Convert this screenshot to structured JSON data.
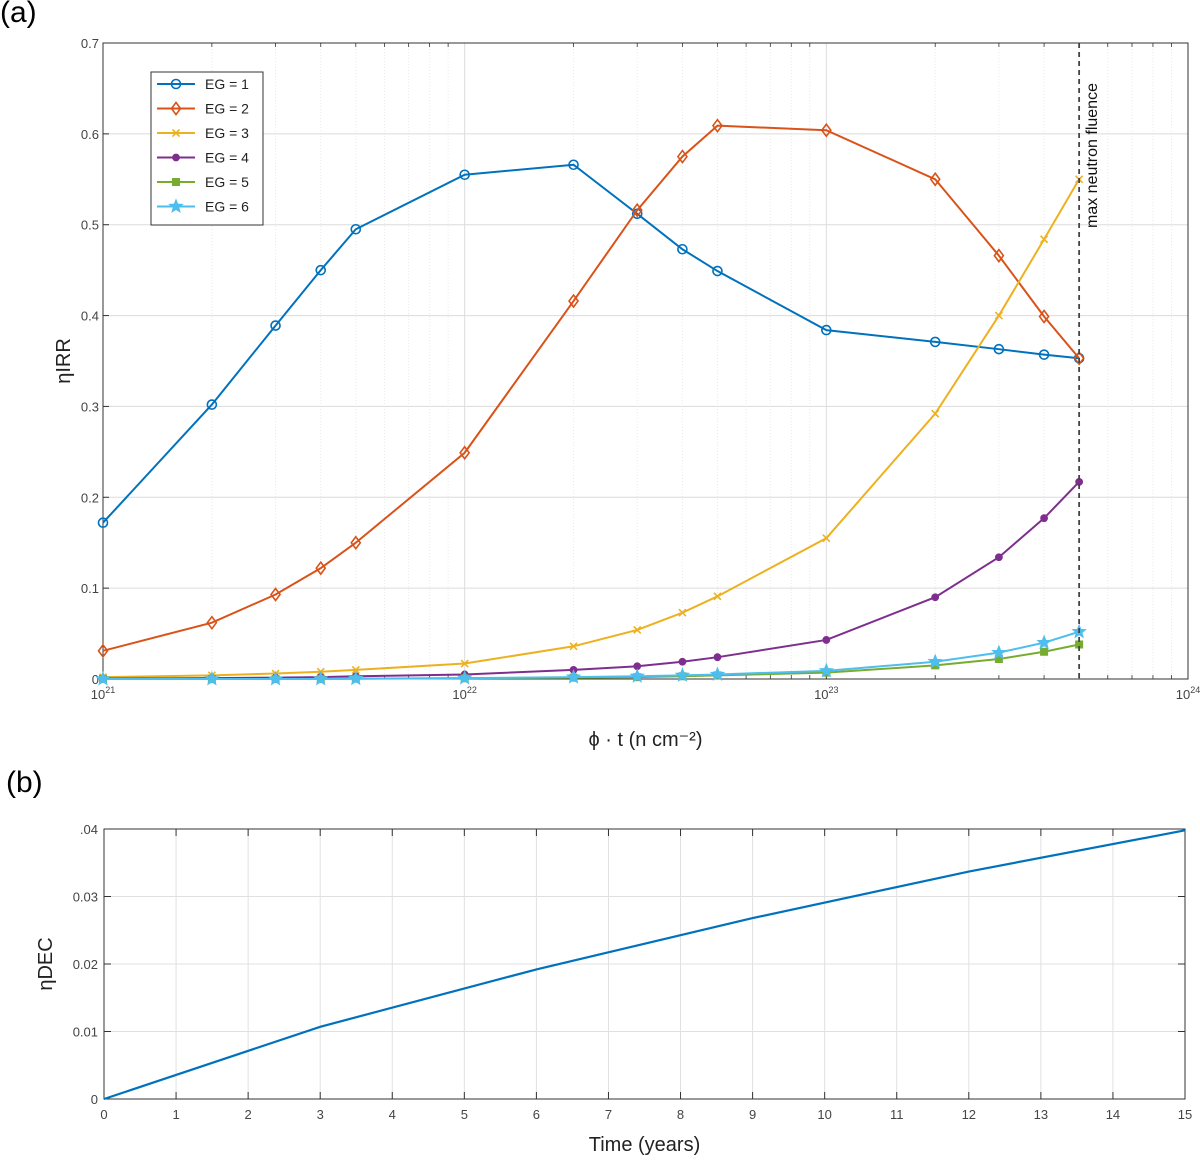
{
  "panels": {
    "a_label": "(a)",
    "b_label": "(b)"
  },
  "chart_data": [
    {
      "type": "line",
      "xscale": "log",
      "xlim": [
        1e+21,
        1e+24
      ],
      "ylim": [
        0,
        0.7
      ],
      "grid": true,
      "legend_position": "top-left",
      "xlabel": "ϕ · t (n cm⁻²)",
      "ylabel": "ηIRR",
      "x_ticks": [
        "10^21",
        "10^22",
        "10^23",
        "10^24"
      ],
      "y_ticks": [
        "0",
        "0.1",
        "0.2",
        "0.3",
        "0.4",
        "0.5",
        "0.6",
        "0.7"
      ],
      "x": [
        1e+21,
        2e+21,
        3e+21,
        4e+21,
        5e+21,
        1e+22,
        2e+22,
        3e+22,
        4e+22,
        5e+22,
        1e+23,
        2e+23,
        3e+23,
        4e+23,
        5e+23
      ],
      "annotation": {
        "text": "max neutron fluence",
        "x": 5e+23
      },
      "series": [
        {
          "name": "EG = 1",
          "color": "#0072BD",
          "marker": "circle",
          "values": [
            0.172,
            0.302,
            0.389,
            0.45,
            0.495,
            0.555,
            0.566,
            0.512,
            0.473,
            0.449,
            0.384,
            0.371,
            0.363,
            0.357,
            0.353
          ]
        },
        {
          "name": "EG = 2",
          "color": "#D95319",
          "marker": "diamond",
          "values": [
            0.031,
            0.062,
            0.093,
            0.122,
            0.15,
            0.249,
            0.416,
            0.516,
            0.575,
            0.609,
            0.604,
            0.55,
            0.466,
            0.399,
            0.353
          ]
        },
        {
          "name": "EG = 3",
          "color": "#EDB120",
          "marker": "x",
          "values": [
            0.002,
            0.004,
            0.006,
            0.008,
            0.01,
            0.017,
            0.036,
            0.054,
            0.073,
            0.091,
            0.155,
            0.292,
            0.4,
            0.484,
            0.55
          ]
        },
        {
          "name": "EG = 4",
          "color": "#7E2F8E",
          "marker": "dot",
          "values": [
            0.0005,
            0.001,
            0.0015,
            0.002,
            0.003,
            0.005,
            0.01,
            0.014,
            0.019,
            0.024,
            0.043,
            0.09,
            0.134,
            0.177,
            0.217
          ]
        },
        {
          "name": "EG = 5",
          "color": "#77AC30",
          "marker": "square",
          "values": [
            0,
            0,
            0,
            0,
            0.0003,
            0.0008,
            0.0015,
            0.002,
            0.003,
            0.004,
            0.007,
            0.015,
            0.022,
            0.03,
            0.038
          ]
        },
        {
          "name": "EG = 6",
          "color": "#4DBEEE",
          "marker": "star",
          "values": [
            0,
            0,
            0,
            0,
            0.0004,
            0.001,
            0.002,
            0.003,
            0.004,
            0.005,
            0.009,
            0.019,
            0.029,
            0.04,
            0.052
          ]
        }
      ]
    },
    {
      "type": "line",
      "xlim": [
        0,
        15
      ],
      "ylim": [
        0,
        0.04
      ],
      "grid": true,
      "xlabel": "Time (years)",
      "ylabel": "ηDEC",
      "x_ticks": [
        "0",
        "1",
        "2",
        "3",
        "4",
        "5",
        "6",
        "7",
        "8",
        "9",
        "10",
        "11",
        "12",
        "13",
        "14",
        "15"
      ],
      "y_ticks": [
        "0",
        "0.01",
        "0.02",
        "0.03",
        ".04"
      ],
      "series": [
        {
          "color": "#0072BD",
          "x": [
            0,
            3,
            6,
            9,
            12,
            15
          ],
          "values": [
            0,
            0.0107,
            0.0192,
            0.0268,
            0.0337,
            0.0398
          ]
        }
      ]
    }
  ]
}
